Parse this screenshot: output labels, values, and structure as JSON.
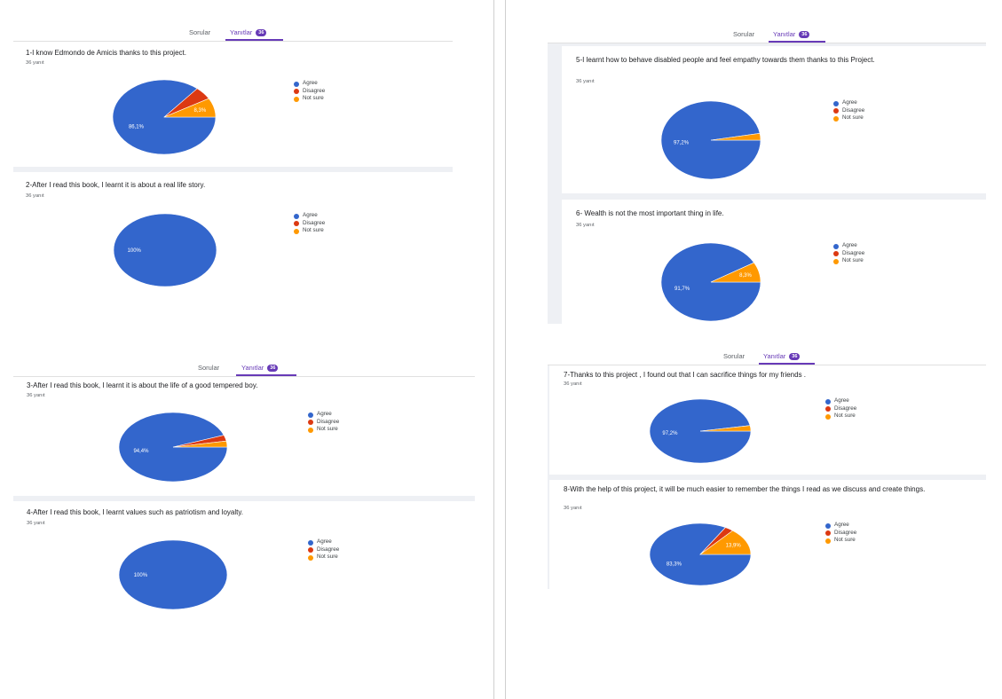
{
  "tabs": {
    "questions": "Sorular",
    "responses": "Yanıtlar",
    "badge": "36"
  },
  "legend_labels": [
    "Agree",
    "Disagree",
    "Not sure"
  ],
  "colors": {
    "agree": "#3366cc",
    "disagree": "#dc3912",
    "not_sure": "#ff9900",
    "accent": "#673ab7"
  },
  "chart_data": [
    {
      "type": "pie",
      "title": "1-I know Edmondo de Amicis thanks to this project.",
      "response_count": "36 yanıt",
      "labels": [
        "Agree",
        "Disagree",
        "Not sure"
      ],
      "values": [
        86.1,
        5.6,
        8.3
      ],
      "slice_labels": [
        "86,1%",
        "",
        "8,3%"
      ]
    },
    {
      "type": "pie",
      "title": "2-After I read this book, I learnt it is about a real life story.",
      "response_count": "36 yanıt",
      "labels": [
        "Agree",
        "Disagree",
        "Not sure"
      ],
      "values": [
        100,
        0,
        0
      ],
      "slice_labels": [
        "100%",
        "",
        ""
      ]
    },
    {
      "type": "pie",
      "title": "3-After I read this book, I learnt it is about the life of a good tempered boy.",
      "response_count": "36 yanıt",
      "labels": [
        "Agree",
        "Disagree",
        "Not sure"
      ],
      "values": [
        94.4,
        2.8,
        2.8
      ],
      "slice_labels": [
        "94,4%",
        "",
        ""
      ]
    },
    {
      "type": "pie",
      "title": "4-After I read this book, I learnt values such as patriotism and loyalty.",
      "response_count": "36 yanıt",
      "labels": [
        "Agree",
        "Disagree",
        "Not sure"
      ],
      "values": [
        100,
        0,
        0
      ],
      "slice_labels": [
        "100%",
        "",
        ""
      ]
    },
    {
      "type": "pie",
      "title": "5-I learnt how to behave disabled people and feel empathy towards them thanks to this Project.",
      "response_count": "36 yanıt",
      "labels": [
        "Agree",
        "Disagree",
        "Not sure"
      ],
      "values": [
        97.2,
        0,
        2.8
      ],
      "slice_labels": [
        "97,2%",
        "",
        ""
      ]
    },
    {
      "type": "pie",
      "title": "6- Wealth is not the most important thing in life.",
      "response_count": "36 yanıt",
      "labels": [
        "Agree",
        "Disagree",
        "Not sure"
      ],
      "values": [
        91.7,
        0,
        8.3
      ],
      "slice_labels": [
        "91,7%",
        "",
        "8,3%"
      ]
    },
    {
      "type": "pie",
      "title": "7-Thanks to this project , I found out that I can sacrifice things for my friends .",
      "response_count": "36 yanıt",
      "labels": [
        "Agree",
        "Disagree",
        "Not sure"
      ],
      "values": [
        97.2,
        0,
        2.8
      ],
      "slice_labels": [
        "97,2%",
        "",
        ""
      ]
    },
    {
      "type": "pie",
      "title": "8-With the help of this project, it will be much easier to remember the things I read as we discuss and create things.",
      "response_count": "36 yanıt",
      "labels": [
        "Agree",
        "Disagree",
        "Not sure"
      ],
      "values": [
        83.3,
        2.8,
        13.9
      ],
      "slice_labels": [
        "83,3%",
        "",
        "13,9%"
      ]
    }
  ]
}
